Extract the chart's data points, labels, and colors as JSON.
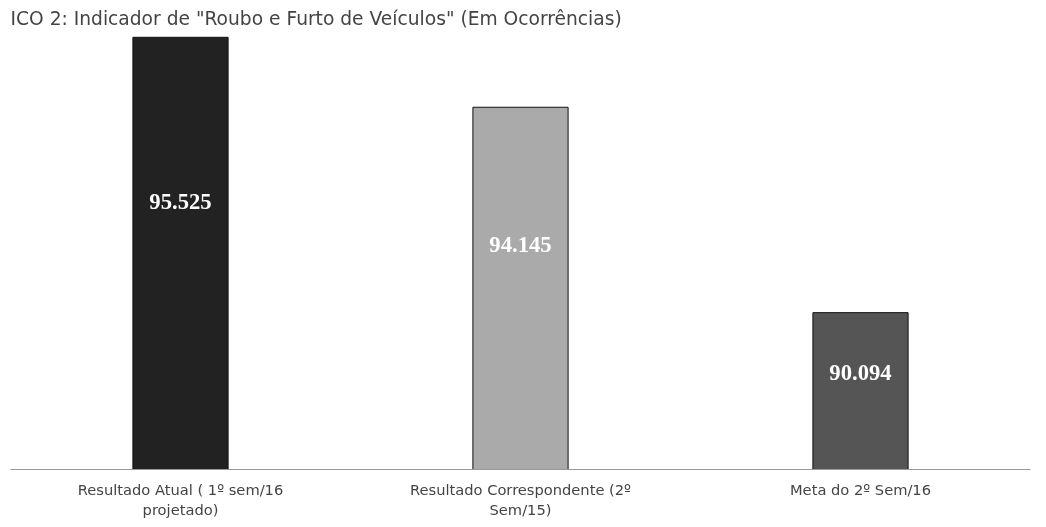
{
  "chart_data": {
    "type": "bar",
    "title": "ICO 2: Indicador de \"Roubo e Furto de Veículos\" (Em Ocorrências)",
    "categories": [
      "Resultado Atual ( 1º sem/16 projetado)",
      "Resultado Correspondente (2º Sem/15)",
      "Meta do 2º Sem/16"
    ],
    "values": [
      95525,
      94145,
      90094
    ],
    "colors": [
      "#222222",
      "#aaaaaa",
      "#555555"
    ],
    "value_labels": [
      "95.525",
      "94.145",
      "90.094"
    ],
    "ylim": [
      87000,
      95600
    ],
    "tick_labels": "x",
    "grid": false
  }
}
